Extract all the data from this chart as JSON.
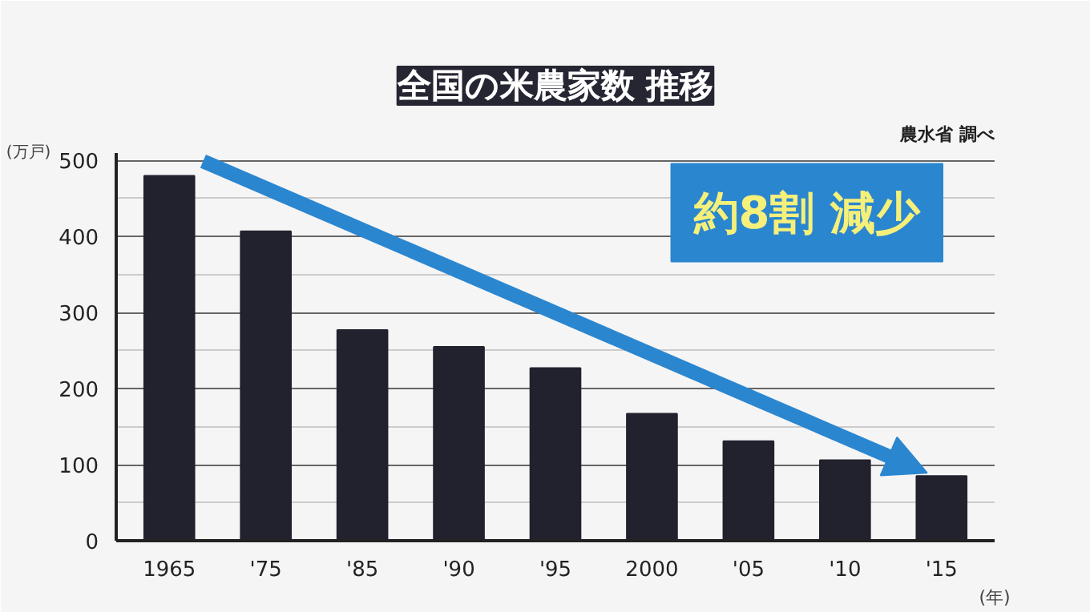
{
  "chart_data": {
    "type": "bar",
    "title": "全国の米農家数 推移",
    "xlabel": "(年)",
    "ylabel": "(万戸)",
    "categories": [
      "1965",
      "'75",
      "'85",
      "'90",
      "'95",
      "2000",
      "'05",
      "'10",
      "'15"
    ],
    "values": [
      480,
      407,
      277,
      255,
      227,
      167,
      131,
      106,
      85
    ],
    "color": "#22222e",
    "ylim": [
      0,
      510
    ],
    "yticks": [
      0,
      100,
      200,
      300,
      400,
      500
    ],
    "grid": "y",
    "annotations": [
      "農水省 調べ",
      "約8割 減少"
    ]
  }
}
